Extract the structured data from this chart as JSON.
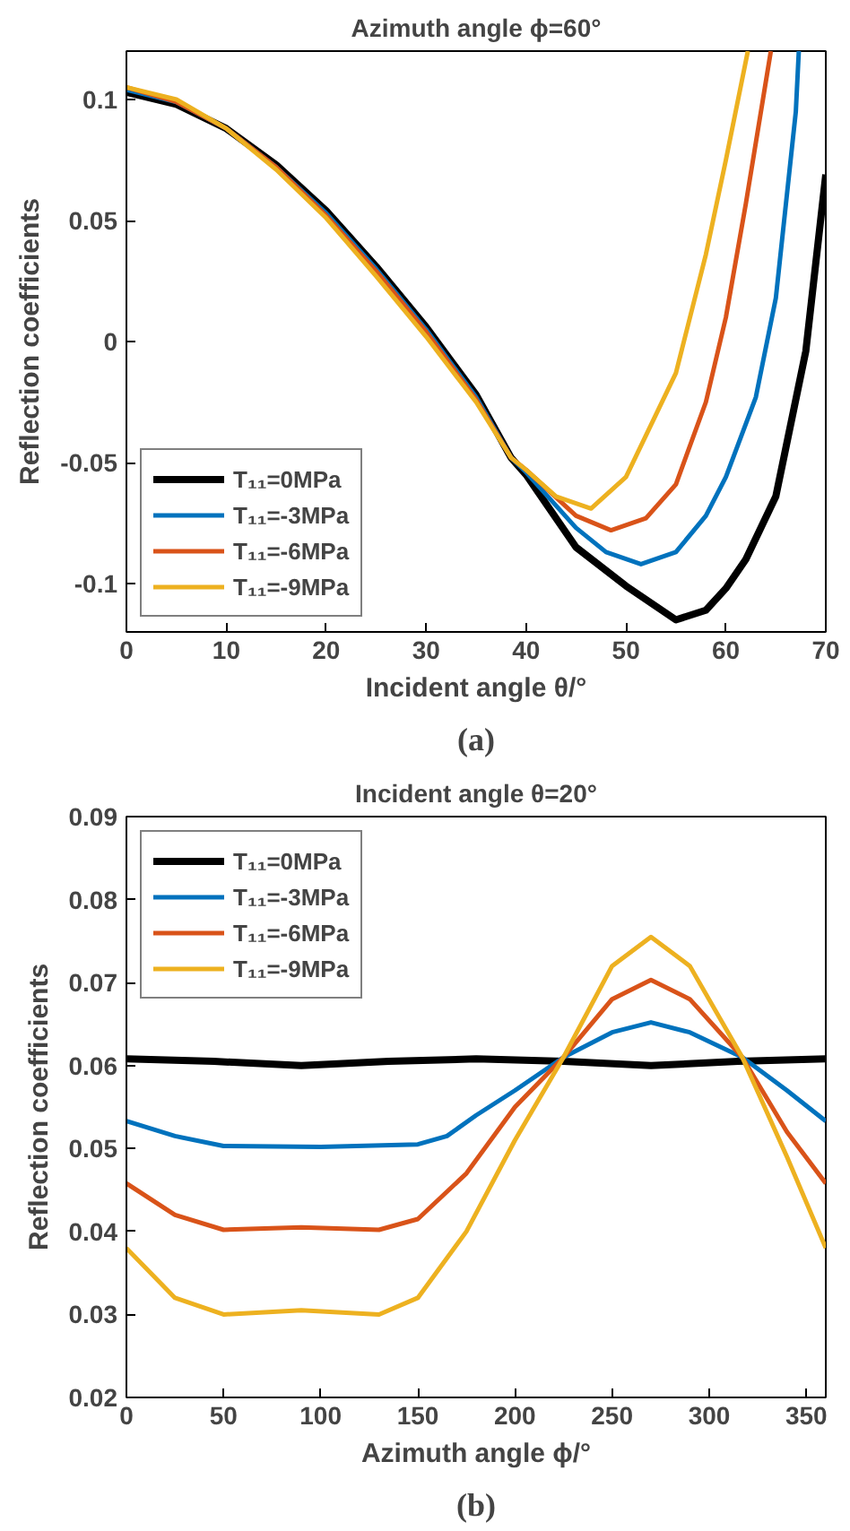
{
  "chart_data": [
    {
      "type": "line",
      "title": "Azimuth angle ϕ=60°",
      "xlabel": "Incident angle θ/°",
      "ylabel": "Reflection coefficients",
      "annotations": [
        "(a)"
      ],
      "xlim": [
        0,
        70
      ],
      "ylim": [
        -0.12,
        0.12
      ],
      "xticks": [
        0,
        10,
        20,
        30,
        40,
        50,
        60,
        70
      ],
      "yticks": [
        -0.1,
        -0.05,
        0,
        0.05,
        0.1
      ],
      "grid": false,
      "legend": "bottom left",
      "line_style": "solid",
      "series": [
        {
          "name": "T₁₁=0MPa",
          "color": "#000000",
          "x": [
            0,
            5,
            10,
            15,
            20,
            25,
            30,
            35,
            38.5,
            40,
            45,
            50,
            55,
            58,
            60,
            62,
            65,
            68,
            70
          ],
          "values": [
            0.103,
            0.098,
            0.088,
            0.073,
            0.054,
            0.031,
            0.006,
            -0.022,
            -0.048,
            -0.055,
            -0.085,
            -0.101,
            -0.115,
            -0.111,
            -0.102,
            -0.09,
            -0.064,
            -0.004,
            0.069
          ]
        },
        {
          "name": "T₁₁=-3MPa",
          "color": "#0072bd",
          "x": [
            0,
            5,
            10,
            15,
            20,
            25,
            30,
            35,
            38.5,
            40,
            45,
            48,
            51.5,
            55,
            58,
            60,
            63,
            65,
            67,
            67.3
          ],
          "values": [
            0.104,
            0.099,
            0.088,
            0.072,
            0.053,
            0.03,
            0.005,
            -0.023,
            -0.048,
            -0.054,
            -0.077,
            -0.087,
            -0.092,
            -0.087,
            -0.072,
            -0.056,
            -0.023,
            0.018,
            0.095,
            0.12
          ]
        },
        {
          "name": "T₁₁=-6MPa",
          "color": "#d95319",
          "x": [
            0,
            5,
            10,
            15,
            20,
            25,
            30,
            35,
            38.5,
            40,
            45,
            48.5,
            52,
            55,
            58,
            60,
            62,
            64.5
          ],
          "values": [
            0.105,
            0.099,
            0.088,
            0.072,
            0.052,
            0.029,
            0.004,
            -0.024,
            -0.048,
            -0.053,
            -0.072,
            -0.078,
            -0.073,
            -0.059,
            -0.025,
            0.01,
            0.057,
            0.12
          ]
        },
        {
          "name": "T₁₁=-9MPa",
          "color": "#edb120",
          "x": [
            0,
            5,
            10,
            15,
            20,
            25,
            30,
            35,
            38.5,
            40,
            43,
            46.5,
            50,
            55,
            58,
            60,
            62.2
          ],
          "values": [
            0.105,
            0.1,
            0.088,
            0.071,
            0.051,
            0.027,
            0.002,
            -0.025,
            -0.048,
            -0.053,
            -0.064,
            -0.069,
            -0.056,
            -0.013,
            0.036,
            0.075,
            0.12
          ]
        }
      ]
    },
    {
      "type": "line",
      "title": "Incident angle θ=20°",
      "xlabel": "Azimuth angle ϕ/°",
      "ylabel": "Reflection coefficients",
      "annotations": [
        "(b)"
      ],
      "xlim": [
        0,
        360
      ],
      "ylim": [
        0.02,
        0.09
      ],
      "xticks": [
        0,
        50,
        100,
        150,
        200,
        250,
        300,
        350
      ],
      "yticks": [
        0.02,
        0.03,
        0.04,
        0.05,
        0.06,
        0.07,
        0.08,
        0.09
      ],
      "grid": false,
      "legend": "top left",
      "line_style": "solid",
      "series": [
        {
          "name": "T₁₁=0MPa",
          "color": "#000000",
          "x": [
            0,
            45,
            90,
            135,
            180,
            225,
            270,
            315,
            360
          ],
          "values": [
            0.0608,
            0.0605,
            0.06,
            0.0605,
            0.0608,
            0.0605,
            0.06,
            0.0605,
            0.0608
          ]
        },
        {
          "name": "T₁₁=-3MPa",
          "color": "#0072bd",
          "x": [
            0,
            25,
            50,
            100,
            150,
            165,
            180,
            200,
            225,
            250,
            270,
            290,
            317,
            340,
            360
          ],
          "values": [
            0.0533,
            0.0515,
            0.0503,
            0.0502,
            0.0505,
            0.0515,
            0.054,
            0.057,
            0.061,
            0.064,
            0.0652,
            0.064,
            0.061,
            0.057,
            0.0533
          ]
        },
        {
          "name": "T₁₁=-6MPa",
          "color": "#d95319",
          "x": [
            0,
            25,
            50,
            90,
            130,
            150,
            175,
            200,
            225,
            250,
            270,
            290,
            317,
            340,
            360
          ],
          "values": [
            0.0458,
            0.042,
            0.0402,
            0.0405,
            0.0402,
            0.0415,
            0.047,
            0.055,
            0.061,
            0.068,
            0.0703,
            0.068,
            0.061,
            0.052,
            0.0458
          ]
        },
        {
          "name": "T₁₁=-9MPa",
          "color": "#edb120",
          "x": [
            0,
            25,
            50,
            90,
            130,
            150,
            175,
            200,
            225,
            250,
            270,
            290,
            317,
            340,
            360
          ],
          "values": [
            0.038,
            0.032,
            0.03,
            0.0305,
            0.03,
            0.032,
            0.04,
            0.051,
            0.061,
            0.072,
            0.0755,
            0.072,
            0.061,
            0.049,
            0.038
          ]
        }
      ]
    }
  ]
}
